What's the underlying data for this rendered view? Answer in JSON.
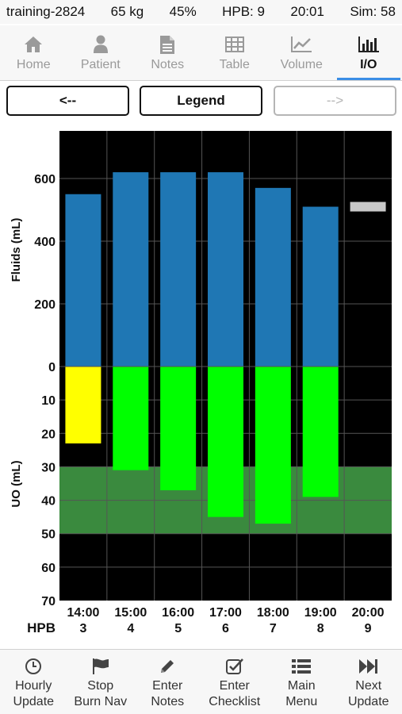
{
  "status": {
    "session": "training-2824",
    "weight": "65 kg",
    "burn": "45%",
    "hpb": "HPB: 9",
    "time": "20:01",
    "sim": "Sim: 58"
  },
  "tabs": [
    {
      "label": "Home",
      "icon": "home-icon"
    },
    {
      "label": "Patient",
      "icon": "person-icon"
    },
    {
      "label": "Notes",
      "icon": "document-icon"
    },
    {
      "label": "Table",
      "icon": "table-icon"
    },
    {
      "label": "Volume",
      "icon": "line-chart-icon"
    },
    {
      "label": "I/O",
      "icon": "bar-chart-icon",
      "active": true
    }
  ],
  "nav": {
    "prev_label": "<--",
    "legend_label": "Legend",
    "next_label": "-->"
  },
  "chart_data": {
    "type": "bar",
    "ylabel_top": "Fluids (mL)",
    "ylabel_bottom": "UO (mL)",
    "fluid_ticks": [
      0,
      200,
      400,
      600
    ],
    "uo_ticks": [
      0,
      10,
      20,
      30,
      40,
      50,
      60,
      70
    ],
    "fluid_ylim": [
      0,
      720
    ],
    "uo_ylim": [
      0,
      70
    ],
    "target_band": [
      30,
      50
    ],
    "row_label": "HPB",
    "categories": [
      "14:00",
      "15:00",
      "16:00",
      "17:00",
      "18:00",
      "19:00",
      "20:00"
    ],
    "hpb": [
      "3",
      "4",
      "5",
      "6",
      "7",
      "8",
      "9"
    ],
    "fluids": [
      550,
      620,
      620,
      620,
      570,
      510,
      510
    ],
    "uo": [
      23,
      31,
      37,
      45,
      47,
      39,
      null
    ],
    "uo_status": [
      "low",
      "ok",
      "ok",
      "ok",
      "ok",
      "ok",
      null
    ],
    "current_index": 6,
    "colors": {
      "background": "#000000",
      "grid": "#555555",
      "fluids": "#1f77b4",
      "uo_ok": "#00ff00",
      "uo_low": "#ffff00",
      "band": "#3a8a3e",
      "current": "#c8c8c8"
    }
  },
  "bottom": [
    {
      "line1": "Hourly",
      "line2": "Update",
      "icon": "clock-icon"
    },
    {
      "line1": "Stop",
      "line2": "Burn Nav",
      "icon": "flag-icon"
    },
    {
      "line1": "Enter",
      "line2": "Notes",
      "icon": "pencil-icon"
    },
    {
      "line1": "Enter",
      "line2": "Checklist",
      "icon": "checkbox-icon"
    },
    {
      "line1": "Main",
      "line2": "Menu",
      "icon": "list-icon"
    },
    {
      "line1": "Next",
      "line2": "Update",
      "icon": "fast-forward-icon"
    }
  ]
}
